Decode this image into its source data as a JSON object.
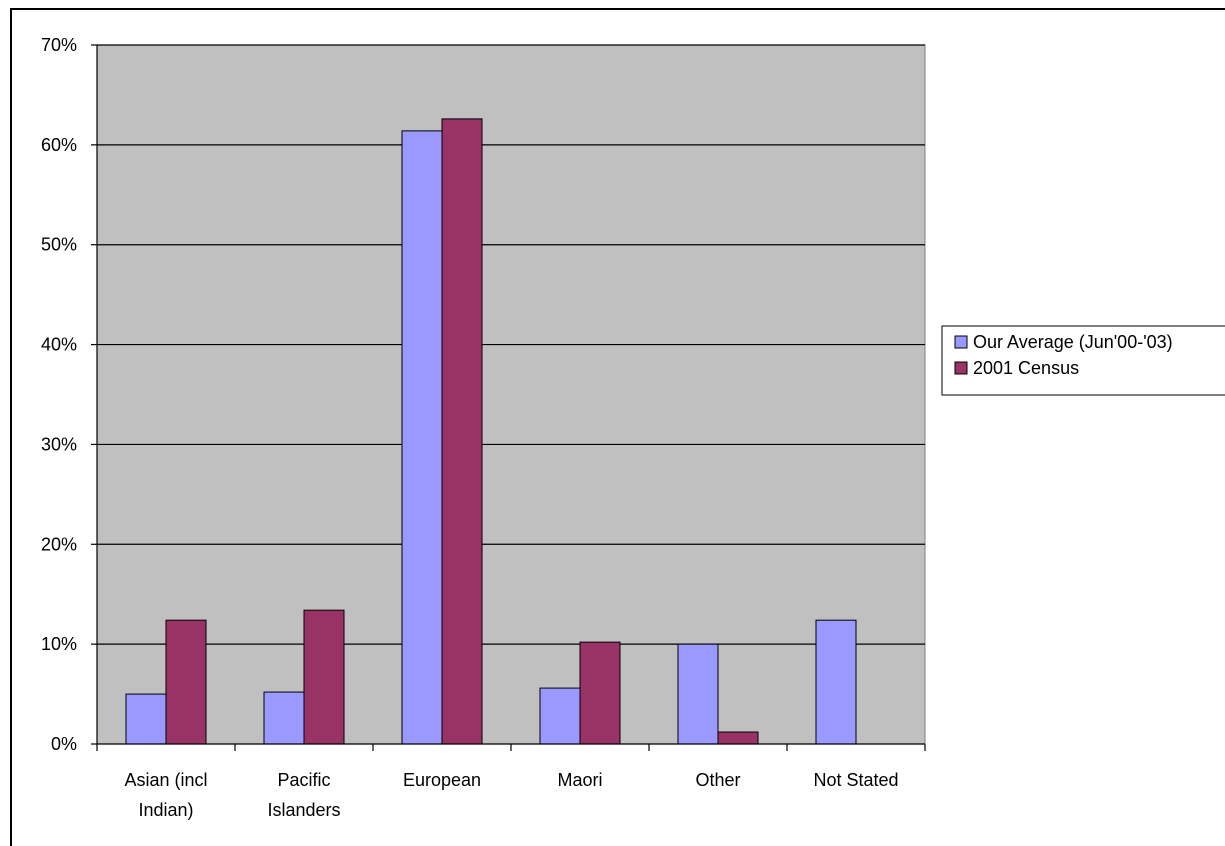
{
  "chart_data": {
    "type": "bar",
    "categories": [
      [
        "Asian (incl",
        "Indian)"
      ],
      [
        "Pacific",
        "Islanders"
      ],
      [
        "European"
      ],
      [
        "Maori"
      ],
      [
        "Other"
      ],
      [
        "Not Stated"
      ]
    ],
    "series": [
      {
        "name": "Our Average (Jun'00-'03)",
        "values": [
          5.0,
          5.2,
          61.4,
          5.6,
          10.0,
          12.4
        ]
      },
      {
        "name": "2001 Census",
        "values": [
          12.4,
          13.4,
          62.6,
          10.2,
          1.2,
          0
        ]
      }
    ],
    "yticks": [
      "0%",
      "10%",
      "20%",
      "30%",
      "40%",
      "50%",
      "60%",
      "70%"
    ],
    "ylim": [
      0,
      70
    ],
    "grid": true,
    "legend": "right",
    "colors": {
      "plot_bg": "#c0c0c0",
      "series": [
        "#9999ff",
        "#993366"
      ]
    }
  }
}
